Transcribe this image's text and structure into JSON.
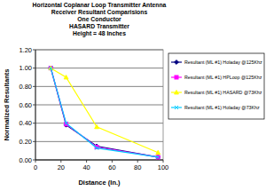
{
  "chart_data": {
    "type": "line",
    "title": [
      "Horizontal Coplanar Loop Transmitter Antenna",
      "Receiver Resultant Comparisions",
      "One Conductor",
      "HASARD Transmitter",
      "Height = 48 Inches"
    ],
    "x_label": "Distance (In.)",
    "y_label": "Normalized Resultants",
    "x": [
      12,
      24,
      48,
      96
    ],
    "series": [
      {
        "name": "Resultant (ML #1) Holaday @125Khz",
        "color": "#000080",
        "marker": "diamond",
        "line_style": "solid",
        "values": [
          1.0,
          0.38,
          0.15,
          0.03
        ]
      },
      {
        "name": "Resultant (ML #1) HPLoop @125Khz",
        "color": "#ff00ff",
        "marker": "square",
        "line_style": "solid",
        "values": [
          1.0,
          0.39,
          0.14,
          0.03
        ]
      },
      {
        "name": "Resultant (ML #1) HASARD @73Khz",
        "color": "#ffff00",
        "marker": "triangle",
        "line_style": "solid",
        "values": [
          1.0,
          0.9,
          0.36,
          0.08
        ]
      },
      {
        "name": "Resultant (ML #1) Holaday @73Khz",
        "color": "#00ccff",
        "marker": "x",
        "line_style": "solid",
        "values": [
          1.0,
          0.4,
          0.13,
          0.03
        ]
      }
    ],
    "xlim": [
      0,
      100
    ],
    "xticks": [
      0,
      20,
      40,
      60,
      80,
      100
    ],
    "ylim": [
      0,
      1.2
    ],
    "yticks": [
      {
        "value": 0,
        "label": "0.00"
      },
      {
        "value": 0.2,
        "label": "0.20"
      },
      {
        "value": 0.4,
        "label": "0.40"
      },
      {
        "value": 0.6,
        "label": "0.60"
      },
      {
        "value": 0.8,
        "label": "0.80"
      },
      {
        "value": 1.0,
        "label": "1.00"
      },
      {
        "value": 1.2,
        "label": "1.20"
      }
    ],
    "grid": true,
    "legend": "right"
  }
}
